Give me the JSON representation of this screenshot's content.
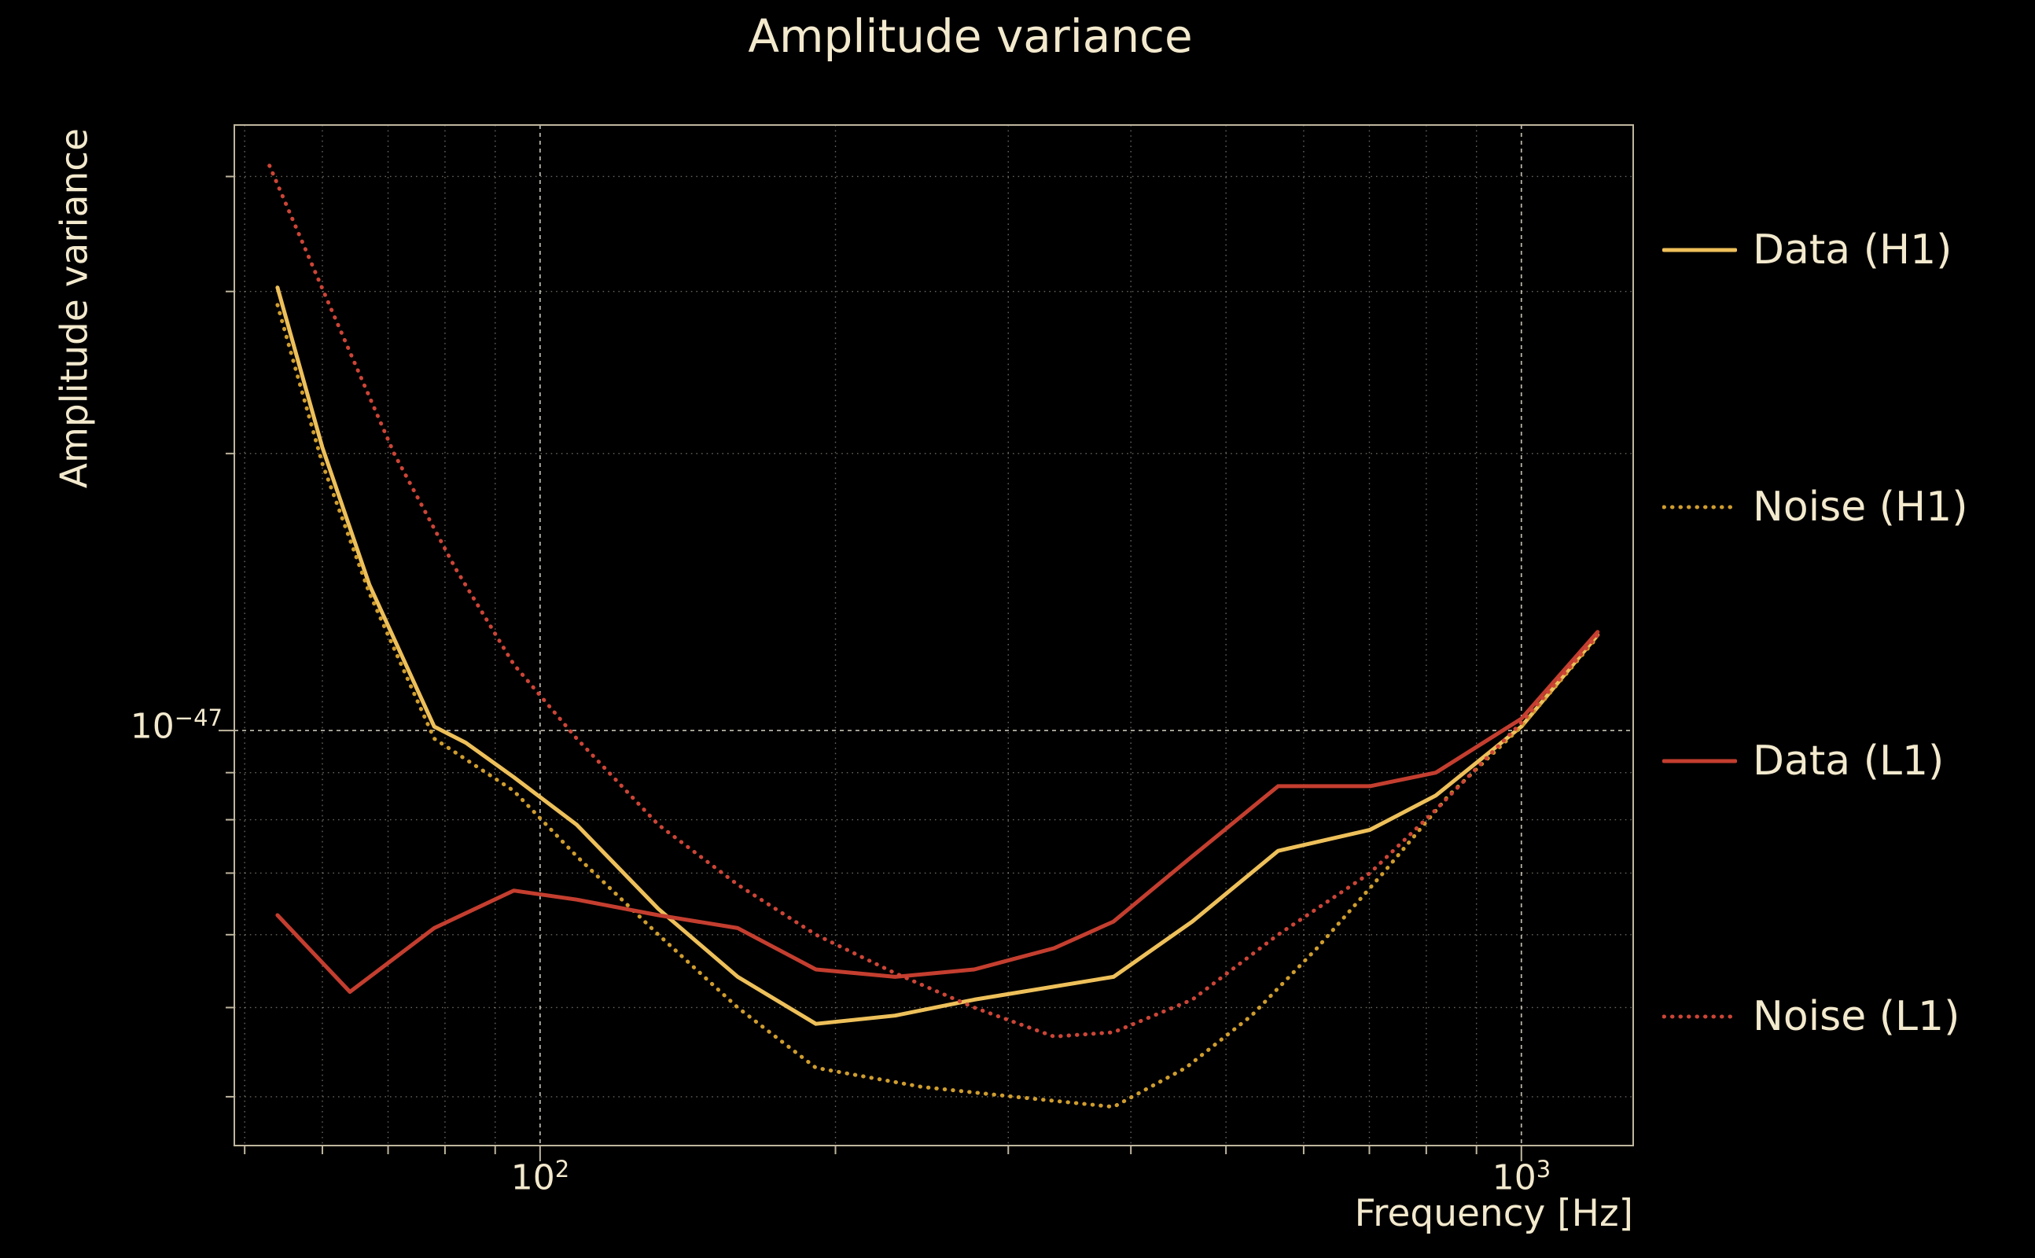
{
  "title": "Amplitude variance",
  "ticks": {
    "x": [
      {
        "base": "10",
        "exp": "2",
        "value": 100
      },
      {
        "base": "10",
        "exp": "3",
        "value": 1000
      }
    ],
    "y": [
      {
        "base": "10",
        "exp": "−47",
        "value": 1e-47
      }
    ]
  },
  "colors": {
    "background": "#000000",
    "text": "#f3e9cd",
    "grid": "#f5efdc",
    "spine": "#bfb69e",
    "data_h1": "#eec05a",
    "noise_h1": "#cf9d2e",
    "data_l1": "#c43e2f",
    "noise_l1": "#cc4537"
  },
  "legend": {
    "items": [
      {
        "label": "Data (H1)",
        "series": 0
      },
      {
        "label": "Noise (H1)",
        "series": 1
      },
      {
        "label": "Data (L1)",
        "series": 2
      },
      {
        "label": "Noise (L1)",
        "series": 3
      }
    ]
  },
  "chart_data": {
    "type": "line",
    "title": "Amplitude variance",
    "xlabel": "Frequency [Hz]",
    "ylabel": "Amplitude variance",
    "x_scale": "log",
    "y_scale": "log",
    "xlim": [
      48.8,
      1300
    ],
    "ylim": [
      3.54e-48,
      4.55e-47
    ],
    "ylim_units": [
      0.354,
      4.55
    ],
    "y_unit": "1e-47",
    "grid": true,
    "legend_position": "right-outside",
    "series": [
      {
        "name": "Data (H1)",
        "color": "#eec05a",
        "style": "solid",
        "x": [
          54,
          60,
          67,
          78,
          84,
          94,
          109,
          132,
          159,
          191,
          230,
          277,
          384,
          462,
          565,
          701,
          818,
          1000,
          1196
        ],
        "y": [
          3.03,
          2.03,
          1.44,
          1.01,
          0.97,
          0.89,
          0.79,
          0.64,
          0.54,
          0.48,
          0.49,
          0.51,
          0.54,
          0.62,
          0.74,
          0.78,
          0.85,
          1.01,
          1.27
        ]
      },
      {
        "name": "Noise (H1)",
        "color": "#cf9d2e",
        "style": "dotted",
        "x": [
          54,
          60,
          67,
          78,
          94,
          109,
          132,
          159,
          191,
          245,
          304,
          384,
          455,
          531,
          619,
          723,
          843,
          1000,
          1193
        ],
        "y": [
          2.9,
          1.95,
          1.41,
          0.98,
          0.86,
          0.73,
          0.6,
          0.5,
          0.43,
          0.41,
          0.4,
          0.39,
          0.43,
          0.49,
          0.58,
          0.7,
          0.85,
          1.01,
          1.26
        ]
      },
      {
        "name": "Data (L1)",
        "color": "#c43e2f",
        "style": "solid",
        "x": [
          54,
          64,
          78,
          94,
          109,
          132,
          159,
          191,
          230,
          277,
          334,
          384,
          462,
          565,
          701,
          818,
          1000,
          1196
        ],
        "y": [
          0.63,
          0.52,
          0.61,
          0.67,
          0.655,
          0.63,
          0.61,
          0.55,
          0.54,
          0.55,
          0.58,
          0.62,
          0.73,
          0.87,
          0.87,
          0.9,
          1.03,
          1.28
        ]
      },
      {
        "name": "Noise (L1)",
        "color": "#cc4537",
        "style": "dotted",
        "x": [
          53,
          61,
          71,
          82,
          94,
          109,
          132,
          159,
          191,
          230,
          277,
          334,
          384,
          462,
          565,
          701,
          818,
          1000,
          1196
        ],
        "y": [
          4.11,
          2.9,
          2.0,
          1.5,
          1.18,
          0.98,
          0.79,
          0.68,
          0.6,
          0.545,
          0.5,
          0.465,
          0.47,
          0.51,
          0.6,
          0.7,
          0.82,
          1.02,
          1.27
        ]
      }
    ]
  }
}
